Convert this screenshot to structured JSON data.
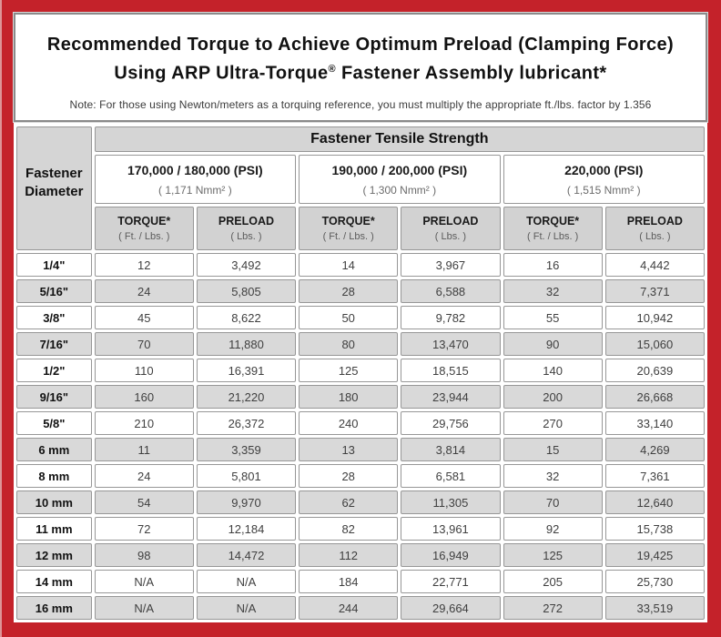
{
  "header": {
    "title_line1": "Recommended Torque to Achieve Optimum Preload (Clamping Force)",
    "title_line2_prefix": "Using ARP Ultra-Torque",
    "title_registered_mark": "®",
    "title_line2_suffix": " Fastener Assembly lubricant*",
    "note": "Note: For those using Newton/meters as a torquing reference, you must multiply the appropriate ft./lbs. factor by 1.356"
  },
  "table": {
    "group_header": "Fastener Tensile Strength",
    "row_header": "Fastener Diameter",
    "strength_columns": [
      {
        "psi": "170,000 / 180,000 (PSI)",
        "nmm": "( 1,171 Nmm² )"
      },
      {
        "psi": "190,000 / 200,000 (PSI)",
        "nmm": "( 1,300 Nmm² )"
      },
      {
        "psi": "220,000 (PSI)",
        "nmm": "( 1,515 Nmm² )"
      }
    ],
    "measure_columns": [
      {
        "label": "TORQUE*",
        "unit": "( Ft. / Lbs. )"
      },
      {
        "label": "PRELOAD",
        "unit": "( Lbs. )"
      }
    ],
    "rows": [
      {
        "diameter": "1/4\"",
        "values": [
          "12",
          "3,492",
          "14",
          "3,967",
          "16",
          "4,442"
        ]
      },
      {
        "diameter": "5/16\"",
        "values": [
          "24",
          "5,805",
          "28",
          "6,588",
          "32",
          "7,371"
        ]
      },
      {
        "diameter": "3/8\"",
        "values": [
          "45",
          "8,622",
          "50",
          "9,782",
          "55",
          "10,942"
        ]
      },
      {
        "diameter": "7/16\"",
        "values": [
          "70",
          "11,880",
          "80",
          "13,470",
          "90",
          "15,060"
        ]
      },
      {
        "diameter": "1/2\"",
        "values": [
          "110",
          "16,391",
          "125",
          "18,515",
          "140",
          "20,639"
        ]
      },
      {
        "diameter": "9/16\"",
        "values": [
          "160",
          "21,220",
          "180",
          "23,944",
          "200",
          "26,668"
        ]
      },
      {
        "diameter": "5/8\"",
        "values": [
          "210",
          "26,372",
          "240",
          "29,756",
          "270",
          "33,140"
        ]
      },
      {
        "diameter": "6 mm",
        "values": [
          "11",
          "3,359",
          "13",
          "3,814",
          "15",
          "4,269"
        ]
      },
      {
        "diameter": "8 mm",
        "values": [
          "24",
          "5,801",
          "28",
          "6,581",
          "32",
          "7,361"
        ]
      },
      {
        "diameter": "10 mm",
        "values": [
          "54",
          "9,970",
          "62",
          "11,305",
          "70",
          "12,640"
        ]
      },
      {
        "diameter": "11 mm",
        "values": [
          "72",
          "12,184",
          "82",
          "13,961",
          "92",
          "15,738"
        ]
      },
      {
        "diameter": "12 mm",
        "values": [
          "98",
          "14,472",
          "112",
          "16,949",
          "125",
          "19,425"
        ]
      },
      {
        "diameter": "14 mm",
        "values": [
          "N/A",
          "N/A",
          "184",
          "22,771",
          "205",
          "25,730"
        ]
      },
      {
        "diameter": "16 mm",
        "values": [
          "N/A",
          "N/A",
          "244",
          "29,664",
          "272",
          "33,519"
        ]
      }
    ]
  },
  "colors": {
    "frame_red": "#c4222a",
    "panel_border": "#8a8a8a",
    "cell_border": "#979797",
    "shaded_cell": "#d9d9d9",
    "header_fill": "#d5d5d5",
    "title_text": "#111111",
    "body_text": "#404040"
  }
}
